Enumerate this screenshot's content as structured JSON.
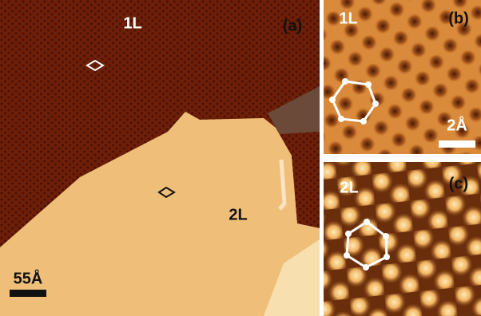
{
  "panels": [
    {
      "tag": "(a)",
      "labels": [
        "1L",
        "2L"
      ],
      "scale_bar": "55Å"
    },
    {
      "tag": "(b)",
      "labels": [
        "1L"
      ],
      "scale_bar": "2Å"
    },
    {
      "tag": "(c)",
      "labels": [
        "2L"
      ]
    }
  ]
}
